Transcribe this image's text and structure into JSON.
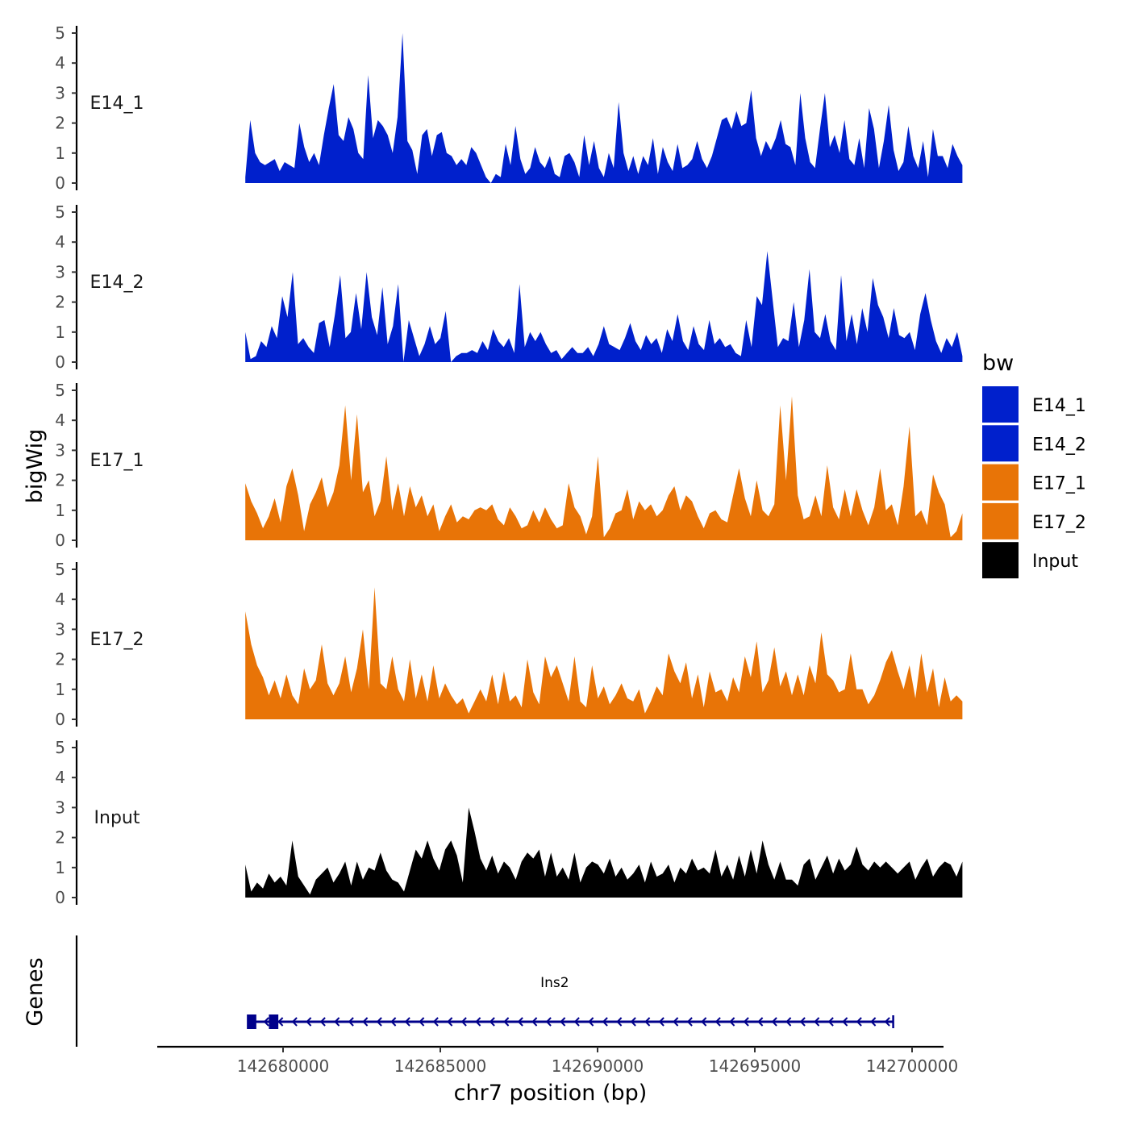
{
  "chart_data": {
    "type": "area",
    "genome_track": true,
    "chromosome": "chr7",
    "xlabel": "chr7 position (bp)",
    "ylabel": "bigWig",
    "genes_panel_label": "Genes",
    "xlim": [
      142676000,
      142701000
    ],
    "ylim": [
      0,
      5
    ],
    "yticks": [
      0,
      1,
      2,
      3,
      4,
      5
    ],
    "xticks": [
      142680000,
      142685000,
      142690000,
      142695000,
      142700000
    ],
    "xtick_labels": [
      "142680000",
      "142685000",
      "142690000",
      "142695000",
      "142700000"
    ],
    "legend": {
      "title": "bw",
      "position": "right",
      "entries": [
        {
          "name": "E14_1",
          "color": "#0020CC"
        },
        {
          "name": "E14_2",
          "color": "#0020CC"
        },
        {
          "name": "E17_1",
          "color": "#E87407"
        },
        {
          "name": "E17_2",
          "color": "#E87407"
        },
        {
          "name": "Input",
          "color": "#000000"
        }
      ]
    },
    "x_range": [
      142678800,
      142701600
    ],
    "tracks": [
      {
        "name": "E14_1",
        "color": "#0020CC",
        "values": [
          0.2,
          2.1,
          1.0,
          0.7,
          0.6,
          0.7,
          0.8,
          0.4,
          0.7,
          0.6,
          0.5,
          2.0,
          1.2,
          0.7,
          1.0,
          0.6,
          1.6,
          2.5,
          3.3,
          1.6,
          1.4,
          2.2,
          1.8,
          1.0,
          0.8,
          3.6,
          1.5,
          2.1,
          1.9,
          1.6,
          1.0,
          2.2,
          5.0,
          1.4,
          1.1,
          0.3,
          1.6,
          1.8,
          0.9,
          1.6,
          1.7,
          1.0,
          0.9,
          0.6,
          0.8,
          0.6,
          1.2,
          1.0,
          0.6,
          0.2,
          0.0,
          0.3,
          0.2,
          1.3,
          0.6,
          1.9,
          0.8,
          0.3,
          0.5,
          1.2,
          0.7,
          0.5,
          0.9,
          0.3,
          0.2,
          0.9,
          1.0,
          0.7,
          0.2,
          1.6,
          0.6,
          1.4,
          0.5,
          0.2,
          1.0,
          0.5,
          2.7,
          1.0,
          0.4,
          0.9,
          0.3,
          0.9,
          0.6,
          1.5,
          0.3,
          1.2,
          0.7,
          0.4,
          1.3,
          0.5,
          0.6,
          0.8,
          1.4,
          0.8,
          0.5,
          0.9,
          1.5,
          2.1,
          2.2,
          1.8,
          2.4,
          1.9,
          2.0,
          3.1,
          1.5,
          0.9,
          1.4,
          1.1,
          1.5,
          2.1,
          1.3,
          1.2,
          0.6,
          3.0,
          1.5,
          0.7,
          0.5,
          1.8,
          3.0,
          1.2,
          1.6,
          1.0,
          2.1,
          0.8,
          0.6,
          1.5,
          0.5,
          2.5,
          1.8,
          0.5,
          1.4,
          2.6,
          1.1,
          0.4,
          0.7,
          1.9,
          0.9,
          0.5,
          1.4,
          0.2,
          1.8,
          0.9,
          0.9,
          0.5,
          1.3,
          0.9,
          0.6
        ]
      },
      {
        "name": "E14_2",
        "color": "#0020CC",
        "values": [
          1.0,
          0.1,
          0.2,
          0.7,
          0.5,
          1.2,
          0.8,
          2.2,
          1.5,
          3.0,
          0.6,
          0.8,
          0.5,
          0.3,
          1.3,
          1.4,
          0.5,
          1.6,
          2.9,
          0.8,
          1.0,
          2.3,
          1.1,
          3.0,
          1.5,
          0.9,
          2.5,
          0.6,
          1.2,
          2.6,
          0.0,
          1.4,
          0.8,
          0.2,
          0.6,
          1.2,
          0.6,
          0.8,
          1.7,
          0.0,
          0.2,
          0.3,
          0.3,
          0.4,
          0.3,
          0.7,
          0.4,
          1.1,
          0.7,
          0.5,
          0.8,
          0.3,
          2.6,
          0.5,
          1.0,
          0.7,
          1.0,
          0.6,
          0.3,
          0.4,
          0.1,
          0.3,
          0.5,
          0.3,
          0.3,
          0.5,
          0.2,
          0.6,
          1.2,
          0.6,
          0.5,
          0.4,
          0.8,
          1.3,
          0.7,
          0.4,
          0.9,
          0.6,
          0.8,
          0.3,
          1.1,
          0.7,
          1.6,
          0.7,
          0.4,
          1.2,
          0.6,
          0.4,
          1.4,
          0.6,
          0.8,
          0.5,
          0.6,
          0.3,
          0.2,
          1.4,
          0.5,
          2.2,
          1.9,
          3.7,
          2.1,
          0.5,
          0.8,
          0.7,
          2.0,
          0.5,
          1.4,
          3.1,
          1.0,
          0.8,
          1.6,
          0.7,
          0.4,
          2.9,
          0.7,
          1.6,
          0.6,
          1.8,
          1.0,
          2.8,
          1.9,
          1.5,
          0.8,
          1.8,
          0.9,
          0.8,
          1.0,
          0.4,
          1.6,
          2.3,
          1.4,
          0.7,
          0.3,
          0.8,
          0.5,
          1.0,
          0.2
        ]
      },
      {
        "name": "E17_1",
        "color": "#E87407",
        "values": [
          1.9,
          1.3,
          0.9,
          0.4,
          0.8,
          1.4,
          0.6,
          1.8,
          2.4,
          1.5,
          0.3,
          1.2,
          1.6,
          2.1,
          1.1,
          1.6,
          2.5,
          4.5,
          2.0,
          4.2,
          1.6,
          2.0,
          0.8,
          1.3,
          2.8,
          1.0,
          1.9,
          0.8,
          1.8,
          1.1,
          1.5,
          0.8,
          1.2,
          0.3,
          0.8,
          1.2,
          0.6,
          0.8,
          0.7,
          1.0,
          1.1,
          1.0,
          1.2,
          0.7,
          0.5,
          1.1,
          0.8,
          0.4,
          0.5,
          1.0,
          0.6,
          1.1,
          0.7,
          0.4,
          0.5,
          1.9,
          1.1,
          0.8,
          0.2,
          0.8,
          2.8,
          0.1,
          0.4,
          0.9,
          1.0,
          1.7,
          0.7,
          1.3,
          1.0,
          1.2,
          0.8,
          1.0,
          1.5,
          1.8,
          1.0,
          1.5,
          1.3,
          0.8,
          0.4,
          0.9,
          1.0,
          0.7,
          0.6,
          1.5,
          2.4,
          1.4,
          0.8,
          2.0,
          1.0,
          0.8,
          1.2,
          4.5,
          2.0,
          4.8,
          1.5,
          0.7,
          0.8,
          1.5,
          0.8,
          2.5,
          1.1,
          0.7,
          1.7,
          0.8,
          1.7,
          1.0,
          0.5,
          1.1,
          2.4,
          1.0,
          1.2,
          0.5,
          1.8,
          3.8,
          0.8,
          1.0,
          0.5,
          2.2,
          1.6,
          1.2,
          0.1,
          0.3,
          0.9
        ]
      },
      {
        "name": "E17_2",
        "color": "#E87407",
        "values": [
          3.6,
          2.5,
          1.8,
          1.4,
          0.8,
          1.3,
          0.7,
          1.5,
          0.8,
          0.5,
          1.7,
          1.0,
          1.3,
          2.5,
          1.2,
          0.8,
          1.2,
          2.1,
          0.9,
          1.7,
          3.0,
          1.0,
          4.4,
          1.2,
          1.0,
          2.1,
          1.0,
          0.6,
          2.0,
          0.7,
          1.5,
          0.6,
          1.8,
          0.7,
          1.2,
          0.8,
          0.5,
          0.7,
          0.2,
          0.6,
          1.0,
          0.6,
          1.5,
          0.5,
          1.6,
          0.6,
          0.8,
          0.4,
          2.0,
          0.9,
          0.5,
          2.1,
          1.4,
          1.8,
          1.2,
          0.6,
          2.1,
          0.6,
          0.4,
          1.8,
          0.7,
          1.1,
          0.5,
          0.8,
          1.2,
          0.7,
          0.6,
          1.0,
          0.2,
          0.6,
          1.1,
          0.8,
          2.2,
          1.6,
          1.2,
          1.9,
          0.7,
          1.5,
          0.4,
          1.6,
          0.9,
          1.0,
          0.6,
          1.4,
          0.9,
          2.1,
          1.4,
          2.6,
          0.9,
          1.3,
          2.4,
          1.1,
          1.6,
          0.8,
          1.5,
          0.8,
          1.8,
          1.2,
          2.9,
          1.5,
          1.3,
          0.9,
          1.0,
          2.2,
          1.0,
          1.0,
          0.5,
          0.8,
          1.3,
          1.9,
          2.3,
          1.6,
          1.0,
          1.8,
          0.7,
          2.2,
          0.9,
          1.7,
          0.4,
          1.4,
          0.6,
          0.8,
          0.6
        ]
      },
      {
        "name": "Input",
        "color": "#000000",
        "values": [
          1.1,
          0.2,
          0.5,
          0.3,
          0.8,
          0.5,
          0.7,
          0.4,
          1.9,
          0.7,
          0.4,
          0.1,
          0.6,
          0.8,
          1.0,
          0.5,
          0.8,
          1.2,
          0.4,
          1.2,
          0.6,
          1.0,
          0.9,
          1.5,
          0.9,
          0.6,
          0.5,
          0.2,
          0.9,
          1.6,
          1.3,
          1.9,
          1.3,
          0.9,
          1.6,
          1.9,
          1.4,
          0.5,
          3.0,
          2.2,
          1.3,
          0.9,
          1.4,
          0.8,
          1.2,
          1.0,
          0.6,
          1.2,
          1.5,
          1.3,
          1.6,
          0.7,
          1.5,
          0.7,
          1.0,
          0.6,
          1.5,
          0.5,
          1.0,
          1.2,
          1.1,
          0.8,
          1.3,
          0.7,
          1.0,
          0.6,
          0.8,
          1.1,
          0.5,
          1.2,
          0.7,
          0.8,
          1.1,
          0.5,
          1.0,
          0.8,
          1.3,
          0.9,
          1.0,
          0.8,
          1.6,
          0.7,
          1.1,
          0.6,
          1.4,
          0.7,
          1.6,
          0.8,
          1.9,
          1.1,
          0.6,
          1.2,
          0.6,
          0.6,
          0.4,
          1.1,
          1.3,
          0.6,
          1.0,
          1.4,
          0.8,
          1.3,
          0.9,
          1.1,
          1.7,
          1.1,
          0.9,
          1.2,
          1.0,
          1.2,
          1.0,
          0.8,
          1.0,
          1.2,
          0.6,
          1.0,
          1.3,
          0.7,
          1.0,
          1.2,
          1.1,
          0.7,
          1.2
        ]
      }
    ],
    "genes": [
      {
        "name": "Ins2",
        "start": 142678900,
        "end": 142699400,
        "strand": "-",
        "exons": [
          [
            142678850,
            142679150
          ],
          [
            142679550,
            142679850
          ]
        ]
      }
    ]
  }
}
